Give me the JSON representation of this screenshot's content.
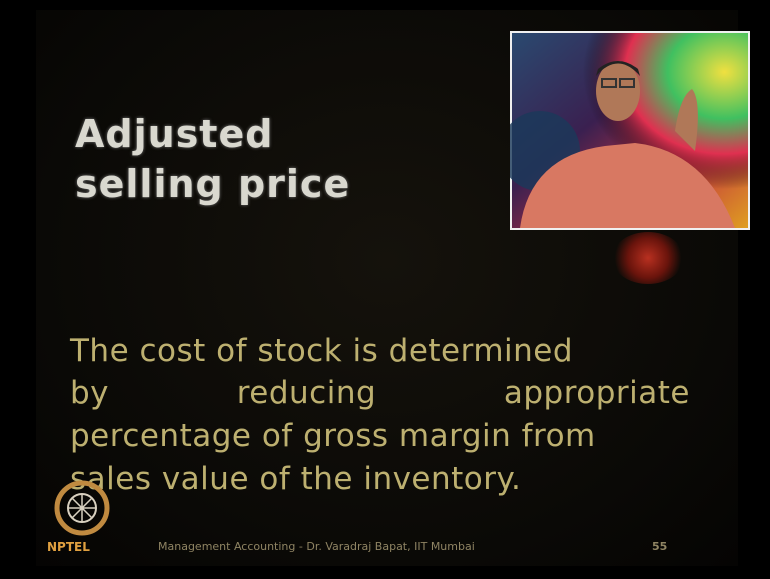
{
  "slide": {
    "title_lines": [
      "Adjusted",
      "selling price"
    ],
    "body_lines": [
      "The cost of stock is determined",
      "by reducing appropriate",
      "percentage of gross margin from",
      "sales value of the inventory."
    ],
    "logo_text": "NPTEL",
    "footer": "Management Accounting - Dr. Varadraj Bapat, IIT Mumbai",
    "page_number": "55"
  }
}
